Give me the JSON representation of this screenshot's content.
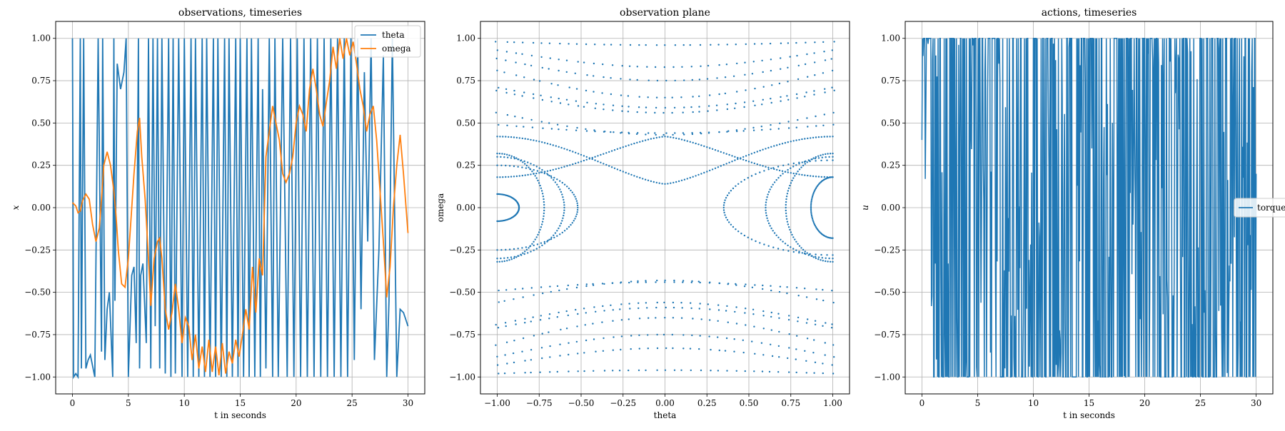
{
  "chart_data": [
    {
      "type": "line",
      "title": "observations, timeseries",
      "xlabel": "t in seconds",
      "ylabel": "x",
      "xlim": [
        -1.5,
        31.5
      ],
      "ylim": [
        -1.1,
        1.1
      ],
      "xticks": [
        0,
        5,
        10,
        15,
        20,
        25,
        30
      ],
      "yticks": [
        -1.0,
        -0.75,
        -0.5,
        -0.25,
        0.0,
        0.25,
        0.5,
        0.75,
        1.0
      ],
      "xtick_labels": [
        "0",
        "5",
        "10",
        "15",
        "20",
        "25",
        "30"
      ],
      "ytick_labels": [
        "−1.00",
        "−0.75",
        "−0.50",
        "−0.25",
        "0.00",
        "0.25",
        "0.50",
        "0.75",
        "1.00"
      ],
      "grid": true,
      "legend_position": "top-right",
      "series": [
        {
          "name": "theta",
          "color": "#1f77b4",
          "x": [
            0,
            0.1,
            0.3,
            0.5,
            0.7,
            0.8,
            1.0,
            1.2,
            1.4,
            1.6,
            2.0,
            2.3,
            2.6,
            2.7,
            2.9,
            3.1,
            3.3,
            3.6,
            3.7,
            3.8,
            4.0,
            4.3,
            4.6,
            4.8,
            5.0,
            5.3,
            5.5,
            5.7,
            5.9,
            6.0,
            6.1,
            6.3,
            6.6,
            6.8,
            7.0,
            7.2,
            7.4,
            7.6,
            7.8,
            8.0,
            8.3,
            8.6,
            8.8,
            9.0,
            9.2,
            9.5,
            9.8,
            10.0,
            10.3,
            10.6,
            10.8,
            11.0,
            11.3,
            11.6,
            11.8,
            12.0,
            12.3,
            12.6,
            12.8,
            13.0,
            13.3,
            13.6,
            13.8,
            14.0,
            14.3,
            14.6,
            14.8,
            15.0,
            15.3,
            15.6,
            15.8,
            16.0,
            16.3,
            16.6,
            16.8,
            17.0,
            17.3,
            17.6,
            17.9,
            18.1,
            18.4,
            18.8,
            19.2,
            19.5,
            19.8,
            20.1,
            20.4,
            20.7,
            21.0,
            21.3,
            21.6,
            21.9,
            22.2,
            22.5,
            22.8,
            23.1,
            23.4,
            23.7,
            24.0,
            24.3,
            24.6,
            24.9,
            25.2,
            25.5,
            25.8,
            26.1,
            26.4,
            26.7,
            27.0,
            27.4,
            27.8,
            28.1,
            28.3,
            28.6,
            29.0,
            29.3,
            29.6,
            29.8,
            30.0
          ],
          "y": [
            1.0,
            -1.0,
            -0.98,
            -1.0,
            1.0,
            -0.95,
            1.0,
            -0.95,
            -0.9,
            -0.87,
            -1.0,
            1.0,
            -0.85,
            1.0,
            -0.9,
            -0.6,
            -0.5,
            -1.0,
            1.0,
            -0.55,
            0.85,
            0.7,
            0.8,
            1.0,
            -1.0,
            -0.4,
            -0.35,
            -0.8,
            1.0,
            -0.95,
            -0.4,
            -0.33,
            -0.8,
            1.0,
            -0.95,
            1.0,
            -0.7,
            1.0,
            -0.95,
            1.0,
            -0.98,
            1.0,
            -1.0,
            1.0,
            -0.98,
            1.0,
            -1.0,
            1.0,
            -1.0,
            1.0,
            -1.0,
            1.0,
            -1.0,
            1.0,
            -1.0,
            1.0,
            -1.0,
            1.0,
            -1.0,
            1.0,
            -1.0,
            1.0,
            -1.0,
            1.0,
            -1.0,
            1.0,
            -1.0,
            1.0,
            -1.0,
            1.0,
            -1.0,
            1.0,
            -1.0,
            1.0,
            -1.0,
            0.7,
            -0.95,
            1.0,
            -1.0,
            1.0,
            -1.0,
            1.0,
            -1.0,
            1.0,
            -1.0,
            1.0,
            -1.0,
            1.0,
            -1.0,
            1.0,
            -1.0,
            1.0,
            -1.0,
            1.0,
            -1.0,
            1.0,
            -1.0,
            1.0,
            -1.0,
            1.0,
            -1.0,
            1.0,
            -0.9,
            1.0,
            -0.6,
            0.8,
            -0.2,
            1.0,
            -0.9,
            -0.25,
            0.9,
            -1.0,
            -0.55,
            1.0,
            -1.0,
            -0.6,
            -0.62,
            -0.66,
            -0.7
          ]
        },
        {
          "name": "omega",
          "color": "#ff7f0e",
          "x": [
            0,
            0.3,
            0.5,
            0.7,
            0.9,
            1.2,
            1.5,
            1.8,
            2.1,
            2.4,
            2.6,
            2.8,
            3.1,
            3.4,
            3.7,
            3.9,
            4.1,
            4.4,
            4.7,
            5.0,
            5.2,
            5.5,
            5.8,
            6.0,
            6.2,
            6.5,
            6.8,
            7.0,
            7.3,
            7.6,
            7.8,
            8.0,
            8.3,
            8.6,
            8.9,
            9.2,
            9.5,
            9.8,
            10.1,
            10.4,
            10.7,
            11.0,
            11.3,
            11.6,
            11.9,
            12.2,
            12.5,
            12.8,
            13.1,
            13.4,
            13.7,
            14.0,
            14.3,
            14.6,
            14.9,
            15.2,
            15.5,
            15.8,
            16.1,
            16.4,
            16.7,
            17.0,
            17.3,
            17.6,
            17.9,
            18.2,
            18.5,
            18.8,
            19.1,
            19.4,
            19.7,
            20.0,
            20.3,
            20.6,
            20.9,
            21.2,
            21.5,
            21.8,
            22.1,
            22.4,
            22.7,
            23.0,
            23.3,
            23.6,
            23.9,
            24.2,
            24.5,
            24.8,
            25.1,
            25.4,
            25.7,
            26.0,
            26.3,
            26.6,
            26.9,
            27.2,
            27.5,
            27.8,
            28.1,
            28.4,
            28.7,
            29.0,
            29.3,
            29.6,
            30.0
          ],
          "y": [
            0.03,
            0.01,
            -0.03,
            -0.02,
            0.04,
            0.08,
            0.05,
            -0.1,
            -0.2,
            -0.12,
            0.05,
            0.25,
            0.33,
            0.25,
            0.1,
            -0.05,
            -0.25,
            -0.45,
            -0.47,
            -0.3,
            -0.1,
            0.2,
            0.45,
            0.53,
            0.3,
            0.05,
            -0.3,
            -0.58,
            -0.3,
            -0.2,
            -0.18,
            -0.3,
            -0.6,
            -0.72,
            -0.62,
            -0.45,
            -0.6,
            -0.8,
            -0.65,
            -0.7,
            -0.9,
            -0.75,
            -0.95,
            -0.82,
            -0.97,
            -0.78,
            -0.97,
            -0.82,
            -0.99,
            -0.8,
            -0.98,
            -0.85,
            -0.92,
            -0.78,
            -0.88,
            -0.75,
            -0.6,
            -0.72,
            -0.35,
            -0.62,
            -0.3,
            -0.4,
            0.3,
            0.45,
            0.6,
            0.5,
            0.4,
            0.2,
            0.15,
            0.2,
            0.3,
            0.5,
            0.6,
            0.55,
            0.45,
            0.7,
            0.82,
            0.7,
            0.55,
            0.48,
            0.62,
            0.75,
            0.95,
            0.82,
            1.0,
            0.88,
            1.0,
            0.9,
            0.98,
            0.85,
            0.7,
            0.6,
            0.45,
            0.55,
            0.6,
            0.4,
            0.1,
            -0.2,
            -0.53,
            -0.35,
            0.0,
            0.25,
            0.43,
            0.2,
            -0.15
          ]
        }
      ]
    },
    {
      "type": "scatter",
      "title": "observation plane",
      "xlabel": "theta",
      "ylabel": "omega",
      "xlim": [
        -1.1,
        1.1
      ],
      "ylim": [
        -1.1,
        1.1
      ],
      "xticks": [
        -1.0,
        -0.75,
        -0.5,
        -0.25,
        0.0,
        0.25,
        0.5,
        0.75,
        1.0
      ],
      "yticks": [
        -1.0,
        -0.75,
        -0.5,
        -0.25,
        0.0,
        0.25,
        0.5,
        0.75,
        1.0
      ],
      "xtick_labels": [
        "−1.00",
        "−0.75",
        "−0.50",
        "−0.25",
        "0.00",
        "0.25",
        "0.50",
        "0.75",
        "1.00"
      ],
      "ytick_labels": [
        "−1.00",
        "−0.75",
        "−0.50",
        "−0.25",
        "0.00",
        "0.25",
        "0.50",
        "0.75",
        "1.00"
      ],
      "grid": true,
      "marker_color": "#1f77b4",
      "curves": [
        {
          "theta_ref": 0.0,
          "omega_center": 0.98,
          "amplitude": 0.02
        },
        {
          "theta_ref": 0.0,
          "omega_center": 0.93,
          "amplitude": 0.1
        },
        {
          "theta_ref": 0.0,
          "omega_center": 0.88,
          "amplitude": 0.13
        },
        {
          "theta_ref": 0.0,
          "omega_center": 0.81,
          "amplitude": 0.16
        },
        {
          "theta_ref": 0.0,
          "omega_center": 0.71,
          "amplitude": 0.12
        },
        {
          "theta_ref": 0.0,
          "omega_center": 0.69,
          "amplitude": 0.13
        },
        {
          "theta_ref": 0.0,
          "omega_center": 0.56,
          "amplitude": 0.13
        },
        {
          "theta_ref": 0.0,
          "omega_center": 0.49,
          "amplitude": 0.05
        },
        {
          "theta_ref": 0.0,
          "omega_center": -0.98,
          "amplitude": 0.02
        },
        {
          "theta_ref": 0.0,
          "omega_center": -0.93,
          "amplitude": 0.1
        },
        {
          "theta_ref": 0.0,
          "omega_center": -0.88,
          "amplitude": 0.13
        },
        {
          "theta_ref": 0.0,
          "omega_center": -0.81,
          "amplitude": 0.16
        },
        {
          "theta_ref": 0.0,
          "omega_center": -0.71,
          "amplitude": 0.12
        },
        {
          "theta_ref": 0.0,
          "omega_center": -0.69,
          "amplitude": 0.13
        },
        {
          "theta_ref": 0.0,
          "omega_center": -0.56,
          "amplitude": 0.13
        },
        {
          "theta_ref": 0.0,
          "omega_center": -0.49,
          "amplitude": 0.05
        }
      ],
      "separatrix": [
        {
          "branch": "upper",
          "omega_min": 0.14,
          "omega_max": 0.42
        },
        {
          "branch": "lower",
          "omega_min": -0.42,
          "omega_max": -0.18
        }
      ],
      "libration_arcs": [
        {
          "side": "left",
          "theta_at_zero": -0.72,
          "half_height": 0.32
        },
        {
          "side": "left",
          "theta_at_zero": -0.6,
          "half_height": 0.3
        },
        {
          "side": "left",
          "theta_at_zero": -0.52,
          "half_height": 0.25
        },
        {
          "side": "left",
          "theta_at_zero": -0.87,
          "half_height": 0.08
        },
        {
          "side": "right",
          "theta_at_zero": 0.72,
          "half_height": 0.32
        },
        {
          "side": "right",
          "theta_at_zero": 0.6,
          "half_height": 0.3
        },
        {
          "side": "right",
          "theta_at_zero": 0.35,
          "half_height": 0.28
        },
        {
          "side": "right",
          "theta_at_zero": 0.87,
          "half_height": 0.18
        }
      ]
    },
    {
      "type": "line",
      "title": "actions, timeseries",
      "xlabel": "t in seconds",
      "ylabel": "u",
      "xlim": [
        -1.5,
        31.5
      ],
      "ylim": [
        -1.1,
        1.1
      ],
      "xticks": [
        0,
        5,
        10,
        15,
        20,
        25,
        30
      ],
      "yticks": [
        -1.0,
        -0.75,
        -0.5,
        -0.25,
        0.0,
        0.25,
        0.5,
        0.75,
        1.0
      ],
      "xtick_labels": [
        "0",
        "5",
        "10",
        "15",
        "20",
        "25",
        "30"
      ],
      "ytick_labels": [
        "−1.00",
        "−0.75",
        "−0.50",
        "−0.25",
        "0.00",
        "0.25",
        "0.50",
        "0.75",
        "1.00"
      ],
      "grid": true,
      "legend_position": "center-right",
      "series": [
        {
          "name": "torque",
          "color": "#1f77b4",
          "x_range": [
            0,
            30
          ],
          "samples": 600,
          "value_range": [
            -1.0,
            1.0
          ],
          "start_value": 0.4,
          "end_value": 0.2
        }
      ]
    }
  ]
}
